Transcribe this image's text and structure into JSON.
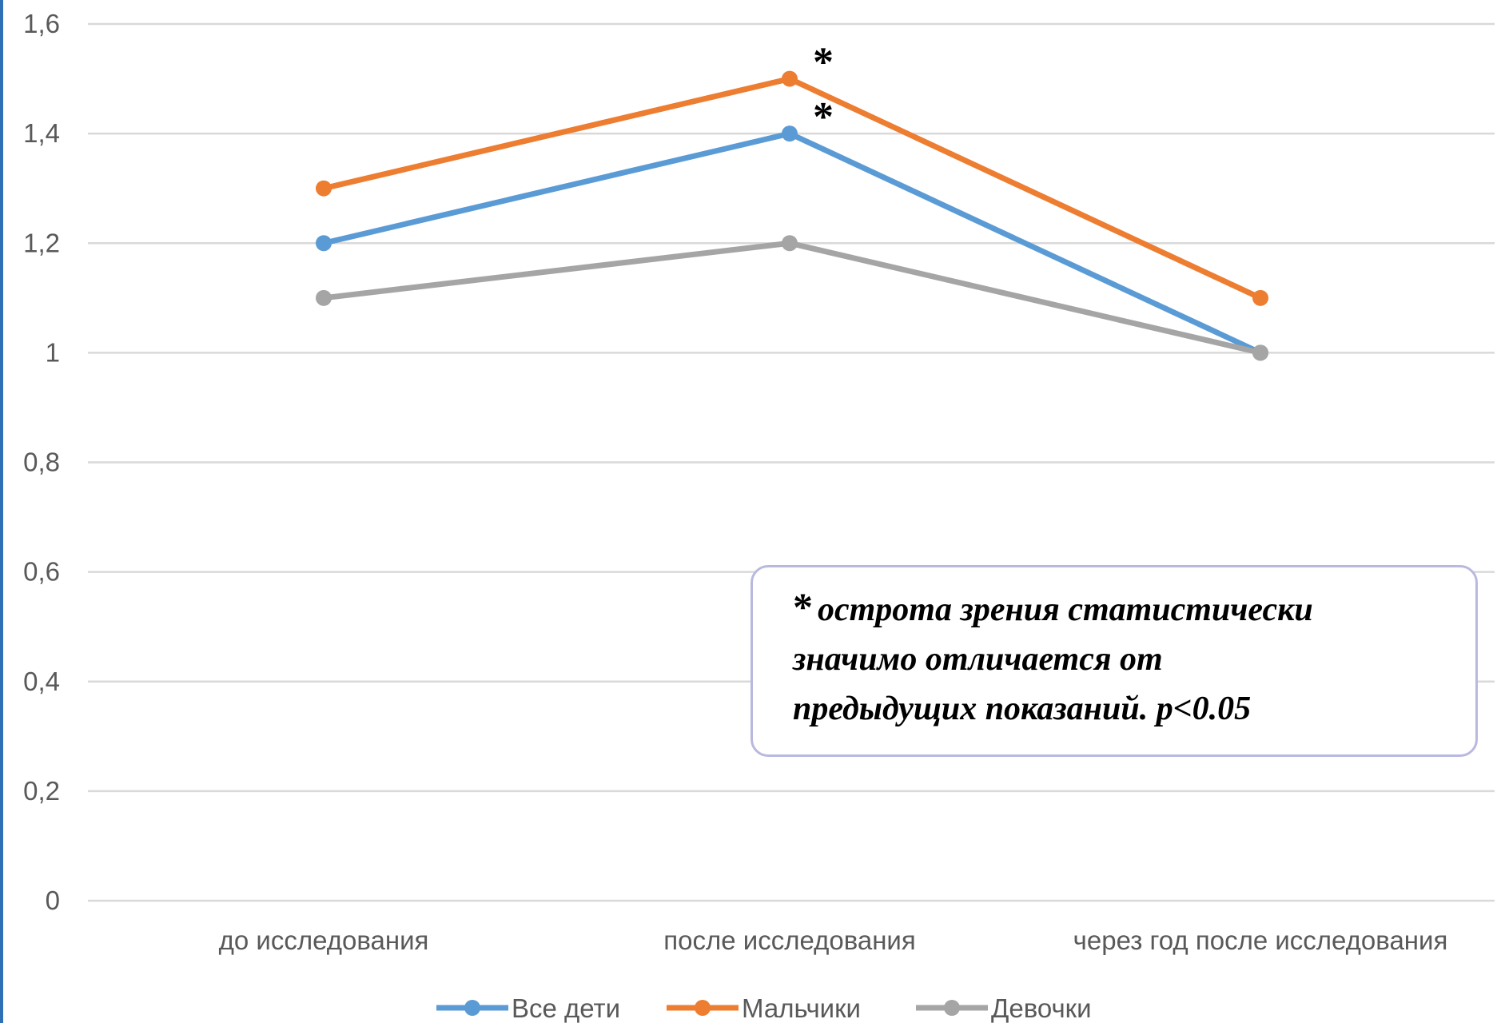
{
  "chart_data": {
    "type": "line",
    "categories": [
      "до исследования",
      "после исследования",
      "через год после исследования"
    ],
    "series": [
      {
        "name": "Все дети",
        "values": [
          1.2,
          1.4,
          1.0
        ],
        "color": "#5b9bd5"
      },
      {
        "name": "Мальчики",
        "values": [
          1.3,
          1.5,
          1.1
        ],
        "color": "#ed7d31"
      },
      {
        "name": "Девочки",
        "values": [
          1.1,
          1.2,
          1.0
        ],
        "color": "#a5a5a5"
      }
    ],
    "yticks": [
      "0",
      "0,2",
      "0,4",
      "0,6",
      "0,8",
      "1",
      "1,2",
      "1,4",
      "1,6"
    ],
    "ylim": [
      0,
      1.6
    ],
    "grid": true,
    "legend_position": "bottom",
    "annotations": [
      {
        "text": "*",
        "series": "Мальчики",
        "category": "после исследования"
      },
      {
        "text": "*",
        "series": "Все дети",
        "category": "после исследования"
      }
    ]
  },
  "note": {
    "asterisk": "*",
    "line1": "острота зрения статистически",
    "line2": "значимо отличается от",
    "line3": "предыдущих показаний. p<0.05"
  }
}
